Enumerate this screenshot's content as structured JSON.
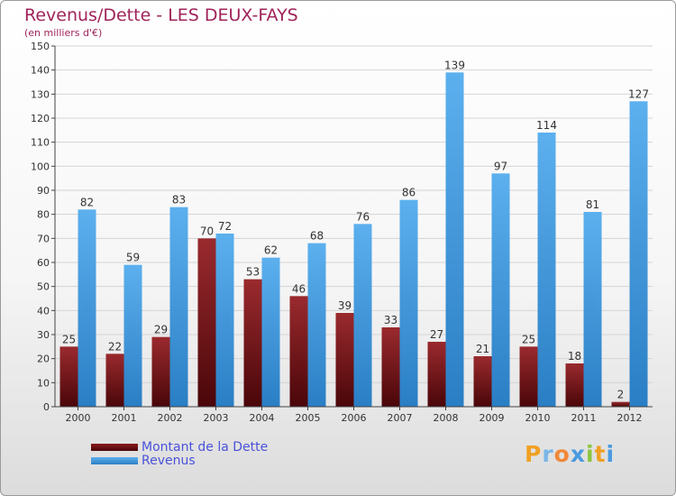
{
  "title": "Revenus/Dette - LES DEUX-FAYS",
  "subtitle": "(en milliers d'€)",
  "logo": "Proxiti",
  "colors": {
    "dette": "#7a1216",
    "revenus": "#3a96dc",
    "title": "#a0245a",
    "legend_text": "#4a52d8"
  },
  "chart_data": {
    "type": "bar",
    "categories": [
      "2000",
      "2001",
      "2002",
      "2003",
      "2004",
      "2005",
      "2006",
      "2007",
      "2008",
      "2009",
      "2010",
      "2011",
      "2012"
    ],
    "series": [
      {
        "name": "Montant de la Dette",
        "values": [
          25,
          22,
          29,
          70,
          53,
          46,
          39,
          33,
          27,
          21,
          25,
          18,
          2
        ]
      },
      {
        "name": "Revenus",
        "values": [
          82,
          59,
          83,
          72,
          62,
          68,
          76,
          86,
          139,
          97,
          114,
          81,
          127
        ]
      }
    ],
    "ylim": [
      0,
      150
    ],
    "yticks": [
      0,
      10,
      20,
      30,
      40,
      50,
      60,
      70,
      80,
      90,
      100,
      110,
      120,
      130,
      140,
      150
    ],
    "grid": true,
    "legend_position": "bottom-left"
  }
}
